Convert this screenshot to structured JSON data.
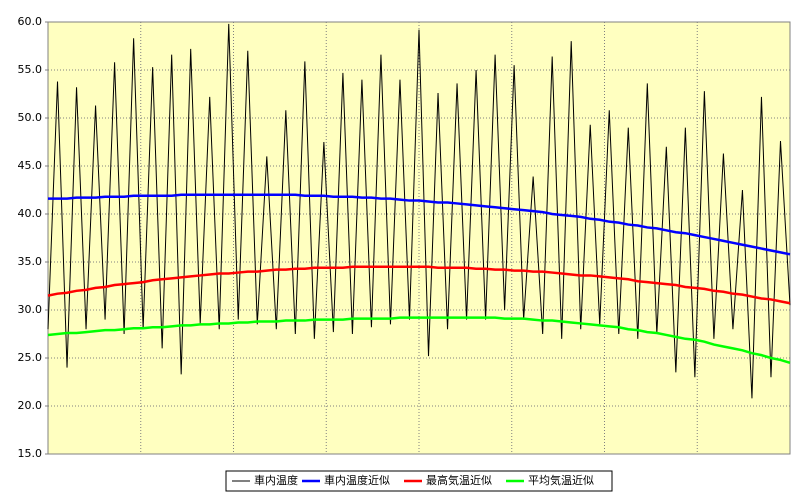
{
  "chart_data": {
    "type": "line",
    "categories": [
      null,
      null,
      null,
      null,
      null,
      null,
      null,
      null,
      null,
      null,
      null,
      null,
      null,
      null,
      null,
      null,
      null,
      null,
      null,
      null,
      null,
      null,
      null,
      null,
      null,
      null,
      null,
      null,
      null,
      null,
      null,
      null,
      null,
      null,
      null,
      null,
      null,
      null,
      null,
      null,
      null,
      null,
      null,
      null,
      null,
      null,
      null,
      null,
      null,
      null,
      null,
      null,
      null,
      null,
      null,
      null,
      null,
      null,
      null,
      null,
      null,
      null,
      null,
      null,
      null,
      null,
      null,
      null,
      null,
      null,
      null,
      null,
      null,
      null,
      null,
      null,
      null,
      null,
      null
    ],
    "ylim": [
      15,
      60
    ],
    "yticks": [
      {
        "value": 15,
        "label": "15.0"
      },
      {
        "value": 20,
        "label": "20.0"
      },
      {
        "value": 25,
        "label": "25.0"
      },
      {
        "value": 30,
        "label": "30.0"
      },
      {
        "value": 35,
        "label": "35.0"
      },
      {
        "value": 40,
        "label": "40.0"
      },
      {
        "value": 45,
        "label": "45.0"
      },
      {
        "value": 50,
        "label": "50.0"
      },
      {
        "value": 55,
        "label": "55.0"
      },
      {
        "value": 60,
        "label": "60.0"
      }
    ],
    "grid": true,
    "legend": "bottom",
    "series": [
      {
        "name": "車内温度",
        "color": "#000000",
        "values": [
          28,
          53.8,
          24,
          53.2,
          28,
          51.3,
          29,
          55.8,
          27.5,
          58.3,
          28,
          55.3,
          26,
          56.6,
          23.3,
          57.2,
          28.6,
          52.2,
          28,
          59.8,
          29,
          57.0,
          28.5,
          46.0,
          28,
          50.8,
          27.5,
          55.9,
          27,
          47.5,
          27.7,
          54.7,
          27.5,
          54.0,
          28.2,
          56.6,
          28.5,
          54.0,
          29,
          59.2,
          25.2,
          52.6,
          28,
          53.6,
          29,
          55.0,
          29,
          56.6,
          30,
          55.5,
          29,
          43.9,
          27.5,
          56.4,
          27,
          58.0,
          28,
          49.3,
          28.5,
          50.8,
          27.5,
          49.0,
          27,
          53.6,
          27.5,
          47.0,
          23.5,
          49.0,
          23,
          52.8,
          27,
          46.3,
          28,
          42.5,
          20.8,
          52.2,
          23,
          47.6,
          30.5
        ]
      },
      {
        "name": "車内温度近似",
        "color": "#0000ff",
        "values": [
          41.6,
          41.6,
          41.6,
          41.7,
          41.7,
          41.7,
          41.8,
          41.8,
          41.8,
          41.9,
          41.9,
          41.9,
          41.9,
          41.9,
          42.0,
          42.0,
          42.0,
          42.0,
          42.0,
          42.0,
          42.0,
          42.0,
          42.0,
          42.0,
          42.0,
          42.0,
          42.0,
          41.9,
          41.9,
          41.9,
          41.8,
          41.8,
          41.8,
          41.7,
          41.7,
          41.6,
          41.6,
          41.5,
          41.4,
          41.4,
          41.3,
          41.2,
          41.2,
          41.1,
          41.0,
          40.9,
          40.8,
          40.7,
          40.6,
          40.5,
          40.4,
          40.3,
          40.2,
          40.0,
          39.9,
          39.8,
          39.7,
          39.5,
          39.4,
          39.2,
          39.1,
          38.9,
          38.8,
          38.6,
          38.5,
          38.3,
          38.1,
          38.0,
          37.8,
          37.6,
          37.4,
          37.2,
          37.0,
          36.8,
          36.6,
          36.4,
          36.2,
          36.0,
          35.8
        ]
      },
      {
        "name": "最高気温近似",
        "color": "#ff0000",
        "values": [
          31.5,
          31.7,
          31.8,
          32.0,
          32.1,
          32.3,
          32.4,
          32.6,
          32.7,
          32.8,
          32.9,
          33.1,
          33.2,
          33.3,
          33.4,
          33.5,
          33.6,
          33.7,
          33.8,
          33.8,
          33.9,
          34.0,
          34.0,
          34.1,
          34.2,
          34.2,
          34.3,
          34.3,
          34.4,
          34.4,
          34.4,
          34.4,
          34.5,
          34.5,
          34.5,
          34.5,
          34.5,
          34.5,
          34.5,
          34.5,
          34.5,
          34.4,
          34.4,
          34.4,
          34.4,
          34.3,
          34.3,
          34.2,
          34.2,
          34.1,
          34.1,
          34.0,
          34.0,
          33.9,
          33.8,
          33.7,
          33.6,
          33.6,
          33.5,
          33.4,
          33.3,
          33.2,
          33.0,
          32.9,
          32.8,
          32.7,
          32.6,
          32.4,
          32.3,
          32.2,
          32.0,
          31.9,
          31.7,
          31.6,
          31.4,
          31.2,
          31.1,
          30.9,
          30.7
        ]
      },
      {
        "name": "平均気温近似",
        "color": "#00ff00",
        "values": [
          27.4,
          27.5,
          27.6,
          27.6,
          27.7,
          27.8,
          27.9,
          27.9,
          28.0,
          28.1,
          28.1,
          28.2,
          28.2,
          28.3,
          28.4,
          28.4,
          28.5,
          28.5,
          28.6,
          28.6,
          28.7,
          28.7,
          28.8,
          28.8,
          28.8,
          28.9,
          28.9,
          28.9,
          29.0,
          29.0,
          29.0,
          29.0,
          29.1,
          29.1,
          29.1,
          29.1,
          29.1,
          29.2,
          29.2,
          29.2,
          29.2,
          29.2,
          29.2,
          29.2,
          29.2,
          29.2,
          29.2,
          29.2,
          29.1,
          29.1,
          29.1,
          29.0,
          28.9,
          28.9,
          28.8,
          28.7,
          28.6,
          28.5,
          28.4,
          28.3,
          28.2,
          28.0,
          27.9,
          27.7,
          27.6,
          27.4,
          27.2,
          27.0,
          26.9,
          26.7,
          26.4,
          26.2,
          26.0,
          25.8,
          25.5,
          25.3,
          25.0,
          24.8,
          24.5
        ]
      }
    ]
  }
}
